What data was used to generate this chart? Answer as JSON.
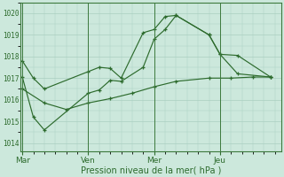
{
  "background_color": "#cce8dc",
  "grid_color": "#aacfc0",
  "line_color": "#2d6b2d",
  "xlabel": "Pression niveau de la mer( hPa )",
  "yticks": [
    1014,
    1015,
    1016,
    1017,
    1018,
    1019,
    1020
  ],
  "ylim": [
    1013.6,
    1020.5
  ],
  "xtick_labels": [
    "Mar",
    "Ven",
    "Mer",
    "Jeu"
  ],
  "xtick_positions": [
    0,
    3,
    6,
    9
  ],
  "xlim": [
    -0.1,
    11.8
  ],
  "series1_x": [
    0,
    0.5,
    1.0,
    3.0,
    3.5,
    4.0,
    4.5,
    5.5,
    6.0,
    6.5,
    7.0,
    8.5,
    9.0,
    9.8,
    11.3
  ],
  "series1_y": [
    1017.8,
    1017.0,
    1016.5,
    1017.3,
    1017.5,
    1017.45,
    1017.0,
    1019.1,
    1019.25,
    1019.85,
    1019.9,
    1019.0,
    1018.1,
    1018.05,
    1017.05
  ],
  "series2_x": [
    0,
    0.5,
    1.0,
    3.0,
    3.5,
    4.0,
    4.5,
    5.5,
    6.0,
    6.5,
    7.0,
    8.5,
    9.0,
    9.8,
    11.3
  ],
  "series2_y": [
    1017.05,
    1015.2,
    1014.6,
    1016.3,
    1016.45,
    1016.9,
    1016.85,
    1017.5,
    1018.8,
    1019.25,
    1019.9,
    1019.0,
    1018.1,
    1017.2,
    1017.05
  ],
  "series3_x": [
    0,
    1.0,
    2.0,
    3.0,
    4.0,
    5.0,
    6.0,
    7.0,
    8.5,
    9.5,
    10.5,
    11.3
  ],
  "series3_y": [
    1016.5,
    1015.85,
    1015.55,
    1015.85,
    1016.05,
    1016.3,
    1016.6,
    1016.85,
    1017.0,
    1017.0,
    1017.05,
    1017.05
  ]
}
